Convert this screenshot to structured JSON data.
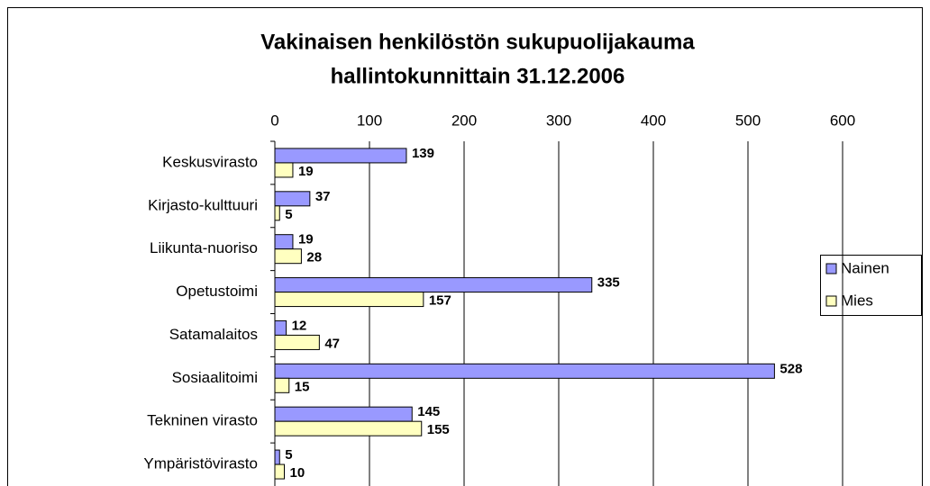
{
  "chart_data": {
    "type": "bar",
    "orientation": "horizontal",
    "title": [
      "Vakinaisen henkilöstön sukupuolijakauma",
      "hallintokunnittain 31.12.2006"
    ],
    "categories": [
      "Keskusvirasto",
      "Kirjasto-kulttuuri",
      "Liikunta-nuoriso",
      "Opetustoimi",
      "Satamalaitos",
      "Sosiaalitoimi",
      "Tekninen virasto",
      "Ympäristövirasto"
    ],
    "series": [
      {
        "name": "Nainen",
        "color": "#9999ff",
        "values": [
          139,
          37,
          19,
          335,
          12,
          528,
          145,
          5
        ]
      },
      {
        "name": "Mies",
        "color": "#ffffc0",
        "values": [
          19,
          5,
          28,
          157,
          47,
          15,
          155,
          10
        ]
      }
    ],
    "xlim": [
      0,
      600
    ],
    "xticks": [
      0,
      100,
      200,
      300,
      400,
      500,
      600
    ],
    "grid": true,
    "legend": "right"
  }
}
